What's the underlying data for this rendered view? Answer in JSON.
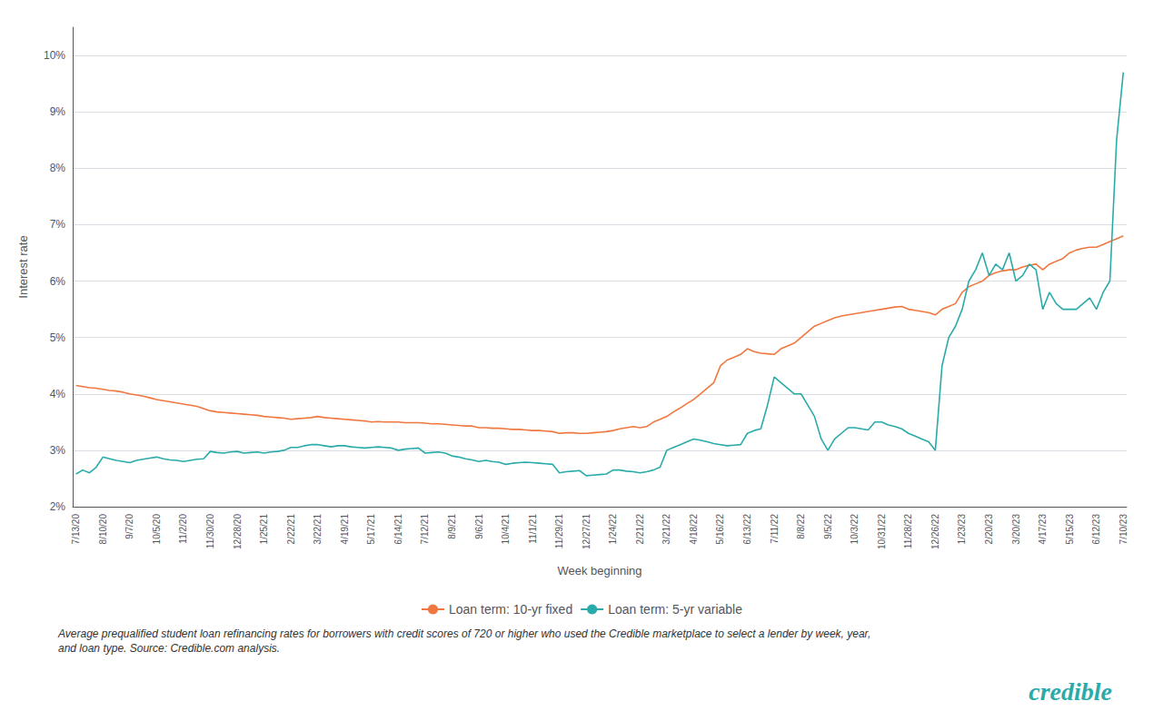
{
  "chart_data": {
    "type": "line",
    "xlabel": "Week beginning",
    "ylabel": "Interest rate",
    "ylim": [
      2.0,
      10.5
    ],
    "yticks": [
      {
        "value": 2,
        "label": "2%"
      },
      {
        "value": 3,
        "label": "3%"
      },
      {
        "value": 4,
        "label": "4%"
      },
      {
        "value": 5,
        "label": "5%"
      },
      {
        "value": 6,
        "label": "6%"
      },
      {
        "value": 7,
        "label": "7%"
      },
      {
        "value": 8,
        "label": "8%"
      },
      {
        "value": 9,
        "label": "9%"
      },
      {
        "value": 10,
        "label": "10%"
      }
    ],
    "grid": true,
    "legend": "bottom",
    "annotations": [
      {
        "text": "Average prequalified student loan refinancing rates for borrowers with credit scores of 720 or higher who used the Credible marketplace to select a lender by week, year,\nand loan type. Source: Credible.com analysis.",
        "color": "#333333"
      },
      {
        "text": "credible",
        "color": "#2aabaa"
      }
    ],
    "categories": [
      "7/13/20",
      null,
      null,
      null,
      "8/10/20",
      null,
      null,
      null,
      "9/7/20",
      null,
      null,
      null,
      "10/5/20",
      null,
      null,
      null,
      "11/2/20",
      null,
      null,
      null,
      "11/30/20",
      null,
      null,
      null,
      "12/28/20",
      null,
      null,
      null,
      "1/25/21",
      null,
      null,
      null,
      "2/22/21",
      null,
      null,
      null,
      "3/22/21",
      null,
      null,
      null,
      "4/19/21",
      null,
      null,
      null,
      "5/17/21",
      null,
      null,
      null,
      "6/14/21",
      null,
      null,
      null,
      "7/12/21",
      null,
      null,
      null,
      "8/9/21",
      null,
      null,
      null,
      "9/6/21",
      null,
      null,
      null,
      "10/4/21",
      null,
      null,
      null,
      "11/1/21",
      null,
      null,
      null,
      "11/29/21",
      null,
      null,
      null,
      "12/27/21",
      null,
      null,
      null,
      "1/24/22",
      null,
      null,
      null,
      "2/21/22",
      null,
      null,
      null,
      "3/21/22",
      null,
      null,
      null,
      "4/18/22",
      null,
      null,
      null,
      "5/16/22",
      null,
      null,
      null,
      "6/13/22",
      null,
      null,
      null,
      "7/11/22",
      null,
      null,
      null,
      "8/8/22",
      null,
      null,
      null,
      "9/5/22",
      null,
      null,
      null,
      "10/3/22",
      null,
      null,
      null,
      "10/31/22",
      null,
      null,
      null,
      "11/28/22",
      null,
      null,
      null,
      "12/26/22",
      null,
      null,
      null,
      "1/23/23",
      null,
      null,
      null,
      "2/20/23",
      null,
      null,
      null,
      "3/20/23",
      null,
      null,
      null,
      "4/17/23",
      null,
      null,
      null,
      "5/15/23",
      null,
      null,
      null,
      "6/12/23",
      null,
      null,
      null,
      "7/10/23"
    ],
    "series": [
      {
        "name": "Loan term: 10-yr fixed",
        "color": "#f07840",
        "values": [
          4.15,
          4.13,
          4.11,
          4.1,
          4.08,
          4.06,
          4.05,
          4.03,
          4.0,
          3.98,
          3.96,
          3.93,
          3.9,
          3.88,
          3.86,
          3.84,
          3.82,
          3.8,
          3.78,
          3.74,
          3.7,
          3.68,
          3.67,
          3.66,
          3.65,
          3.64,
          3.63,
          3.62,
          3.6,
          3.59,
          3.58,
          3.57,
          3.55,
          3.56,
          3.57,
          3.58,
          3.6,
          3.58,
          3.57,
          3.56,
          3.55,
          3.54,
          3.53,
          3.52,
          3.5,
          3.51,
          3.5,
          3.5,
          3.5,
          3.49,
          3.49,
          3.49,
          3.48,
          3.47,
          3.47,
          3.46,
          3.45,
          3.44,
          3.43,
          3.43,
          3.4,
          3.4,
          3.39,
          3.39,
          3.38,
          3.37,
          3.37,
          3.36,
          3.35,
          3.35,
          3.34,
          3.33,
          3.3,
          3.31,
          3.31,
          3.3,
          3.3,
          3.31,
          3.32,
          3.33,
          3.35,
          3.38,
          3.4,
          3.42,
          3.4,
          3.42,
          3.5,
          3.55,
          3.6,
          3.68,
          3.75,
          3.83,
          3.9,
          4.0,
          4.1,
          4.2,
          4.5,
          4.6,
          4.65,
          4.7,
          4.8,
          4.75,
          4.72,
          4.71,
          4.7,
          4.8,
          4.85,
          4.9,
          5.0,
          5.1,
          5.2,
          5.25,
          5.3,
          5.35,
          5.38,
          5.4,
          5.42,
          5.44,
          5.46,
          5.48,
          5.5,
          5.52,
          5.54,
          5.55,
          5.5,
          5.48,
          5.46,
          5.44,
          5.4,
          5.5,
          5.55,
          5.6,
          5.8,
          5.9,
          5.95,
          6.0,
          6.1,
          6.15,
          6.18,
          6.2,
          6.2,
          6.25,
          6.28,
          6.3,
          6.2,
          6.3,
          6.35,
          6.4,
          6.5,
          6.55,
          6.58,
          6.6,
          6.6,
          6.65,
          6.7,
          6.75,
          6.8
        ]
      },
      {
        "name": "Loan term: 5-yr variable",
        "color": "#2aabaa",
        "values": [
          2.58,
          2.65,
          2.6,
          2.7,
          2.88,
          2.85,
          2.82,
          2.8,
          2.78,
          2.82,
          2.84,
          2.86,
          2.88,
          2.85,
          2.83,
          2.82,
          2.8,
          2.82,
          2.84,
          2.85,
          2.98,
          2.96,
          2.95,
          2.97,
          2.98,
          2.95,
          2.96,
          2.97,
          2.95,
          2.97,
          2.98,
          3.0,
          3.05,
          3.05,
          3.08,
          3.1,
          3.1,
          3.08,
          3.06,
          3.08,
          3.08,
          3.06,
          3.05,
          3.04,
          3.05,
          3.06,
          3.05,
          3.04,
          3.0,
          3.02,
          3.03,
          3.04,
          2.95,
          2.96,
          2.97,
          2.95,
          2.9,
          2.88,
          2.85,
          2.83,
          2.8,
          2.82,
          2.8,
          2.79,
          2.75,
          2.77,
          2.78,
          2.79,
          2.78,
          2.77,
          2.76,
          2.75,
          2.6,
          2.62,
          2.63,
          2.64,
          2.55,
          2.56,
          2.57,
          2.58,
          2.65,
          2.65,
          2.63,
          2.62,
          2.6,
          2.62,
          2.65,
          2.7,
          3.0,
          3.05,
          3.1,
          3.15,
          3.2,
          3.18,
          3.15,
          3.12,
          3.1,
          3.08,
          3.09,
          3.1,
          3.3,
          3.35,
          3.38,
          3.8,
          4.3,
          4.2,
          4.1,
          4.0,
          4.0,
          3.8,
          3.6,
          3.2,
          3.0,
          3.2,
          3.3,
          3.4,
          3.4,
          3.38,
          3.36,
          3.5,
          3.5,
          3.45,
          3.42,
          3.38,
          3.3,
          3.25,
          3.2,
          3.15,
          3.0,
          4.5,
          5.0,
          5.2,
          5.5,
          6.0,
          6.2,
          6.5,
          6.1,
          6.3,
          6.2,
          6.5,
          6.0,
          6.1,
          6.3,
          6.2,
          5.5,
          5.8,
          5.6,
          5.5,
          5.5,
          5.5,
          5.6,
          5.7,
          5.5,
          5.8,
          6.0,
          8.5,
          9.7
        ]
      }
    ]
  }
}
